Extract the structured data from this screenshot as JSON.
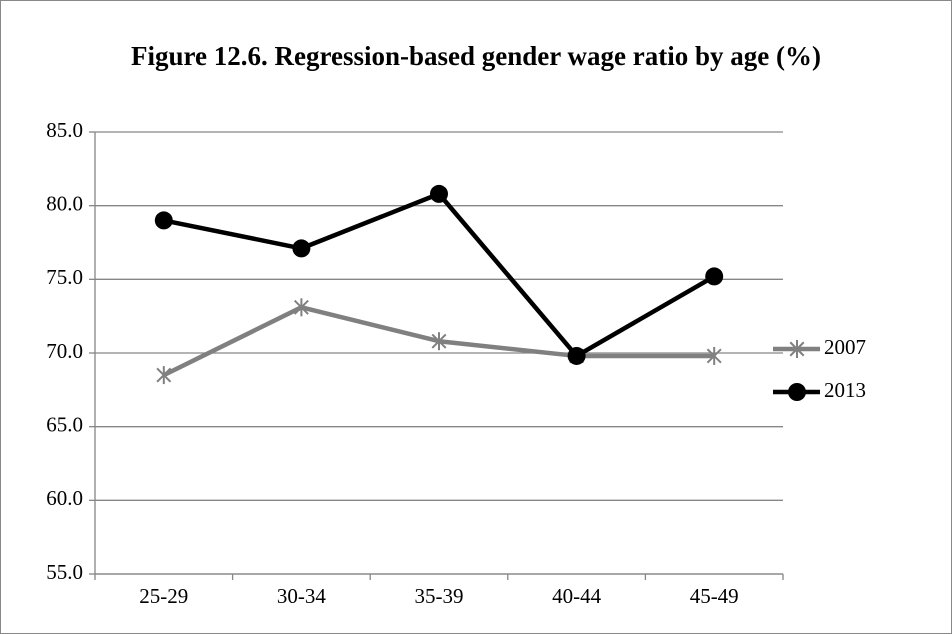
{
  "chart_data": {
    "type": "line",
    "title": "Figure 12.6. Regression-based gender wage ratio by age (%)",
    "categories": [
      "25-29",
      "30-34",
      "35-39",
      "40-44",
      "45-49"
    ],
    "series": [
      {
        "name": "2007",
        "color": "#808080",
        "marker": "star",
        "values": [
          68.5,
          73.1,
          70.8,
          69.8,
          69.8
        ]
      },
      {
        "name": "2013",
        "color": "#000000",
        "marker": "circle",
        "values": [
          79.0,
          77.1,
          80.8,
          69.8,
          75.2
        ]
      }
    ],
    "ylim": [
      55,
      85
    ],
    "yticks": [
      {
        "value": 55,
        "label": "55.0"
      },
      {
        "value": 60,
        "label": "60.0"
      },
      {
        "value": 65,
        "label": "65.0"
      },
      {
        "value": 70,
        "label": "70.0"
      },
      {
        "value": 75,
        "label": "75.0"
      },
      {
        "value": 80,
        "label": "80.0"
      },
      {
        "value": 85,
        "label": "85.0"
      }
    ],
    "grid": true,
    "legend": "right"
  }
}
